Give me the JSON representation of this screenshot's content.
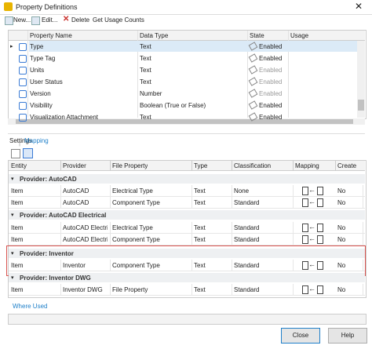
{
  "window": {
    "title": "Property Definitions"
  },
  "toolbar": [
    "New...",
    "Edit...",
    "Delete",
    "Get Usage Counts"
  ],
  "property_grid": {
    "columns": [
      "Property Name",
      "Data Type",
      "State",
      "Usage"
    ],
    "rows": [
      [
        "Type",
        "Text",
        "Enabled"
      ],
      [
        "Type Tag",
        "Text",
        "Enabled"
      ],
      [
        "Units",
        "Text",
        "Enabled"
      ],
      [
        "User Status",
        "Text",
        "Enabled"
      ],
      [
        "Version",
        "Number",
        "Enabled"
      ],
      [
        "Visibility",
        "Boolean (True or False)",
        "Enabled"
      ],
      [
        "Visualization Attachment",
        "Text",
        "Enabled"
      ]
    ]
  },
  "tabs": [
    "Settings",
    "Mapping"
  ],
  "mapping_grid": {
    "columns": [
      "Entity",
      "Provider",
      "File Property",
      "Type",
      "Classification",
      "Mapping",
      "Create"
    ],
    "groups": [
      {
        "label": "Provider: AutoCAD",
        "rows": [
          [
            "Item",
            "AutoCAD",
            "Electrical Type",
            "Text",
            "None",
            "No"
          ],
          [
            "Item",
            "AutoCAD",
            "Component Type",
            "Text",
            "Standard",
            "No"
          ]
        ]
      },
      {
        "label": "Provider: AutoCAD Electrical",
        "rows": [
          [
            "Item",
            "AutoCAD Electri...",
            "Electrical Type",
            "Text",
            "Standard",
            "No"
          ],
          [
            "Item",
            "AutoCAD Electri...",
            "Component Type",
            "Text",
            "Standard",
            "No"
          ]
        ]
      },
      {
        "label": "Provider: Inventor",
        "rows": [
          [
            "Item",
            "Inventor",
            "Component Type",
            "Text",
            "Standard",
            "No"
          ]
        ]
      },
      {
        "label": "Provider: Inventor DWG",
        "rows": [
          [
            "Item",
            "Inventor DWG",
            "File Property",
            "Text",
            "Standard",
            "No"
          ]
        ]
      }
    ]
  },
  "where_used": "Where Used",
  "buttons": [
    "Close",
    "Help"
  ]
}
